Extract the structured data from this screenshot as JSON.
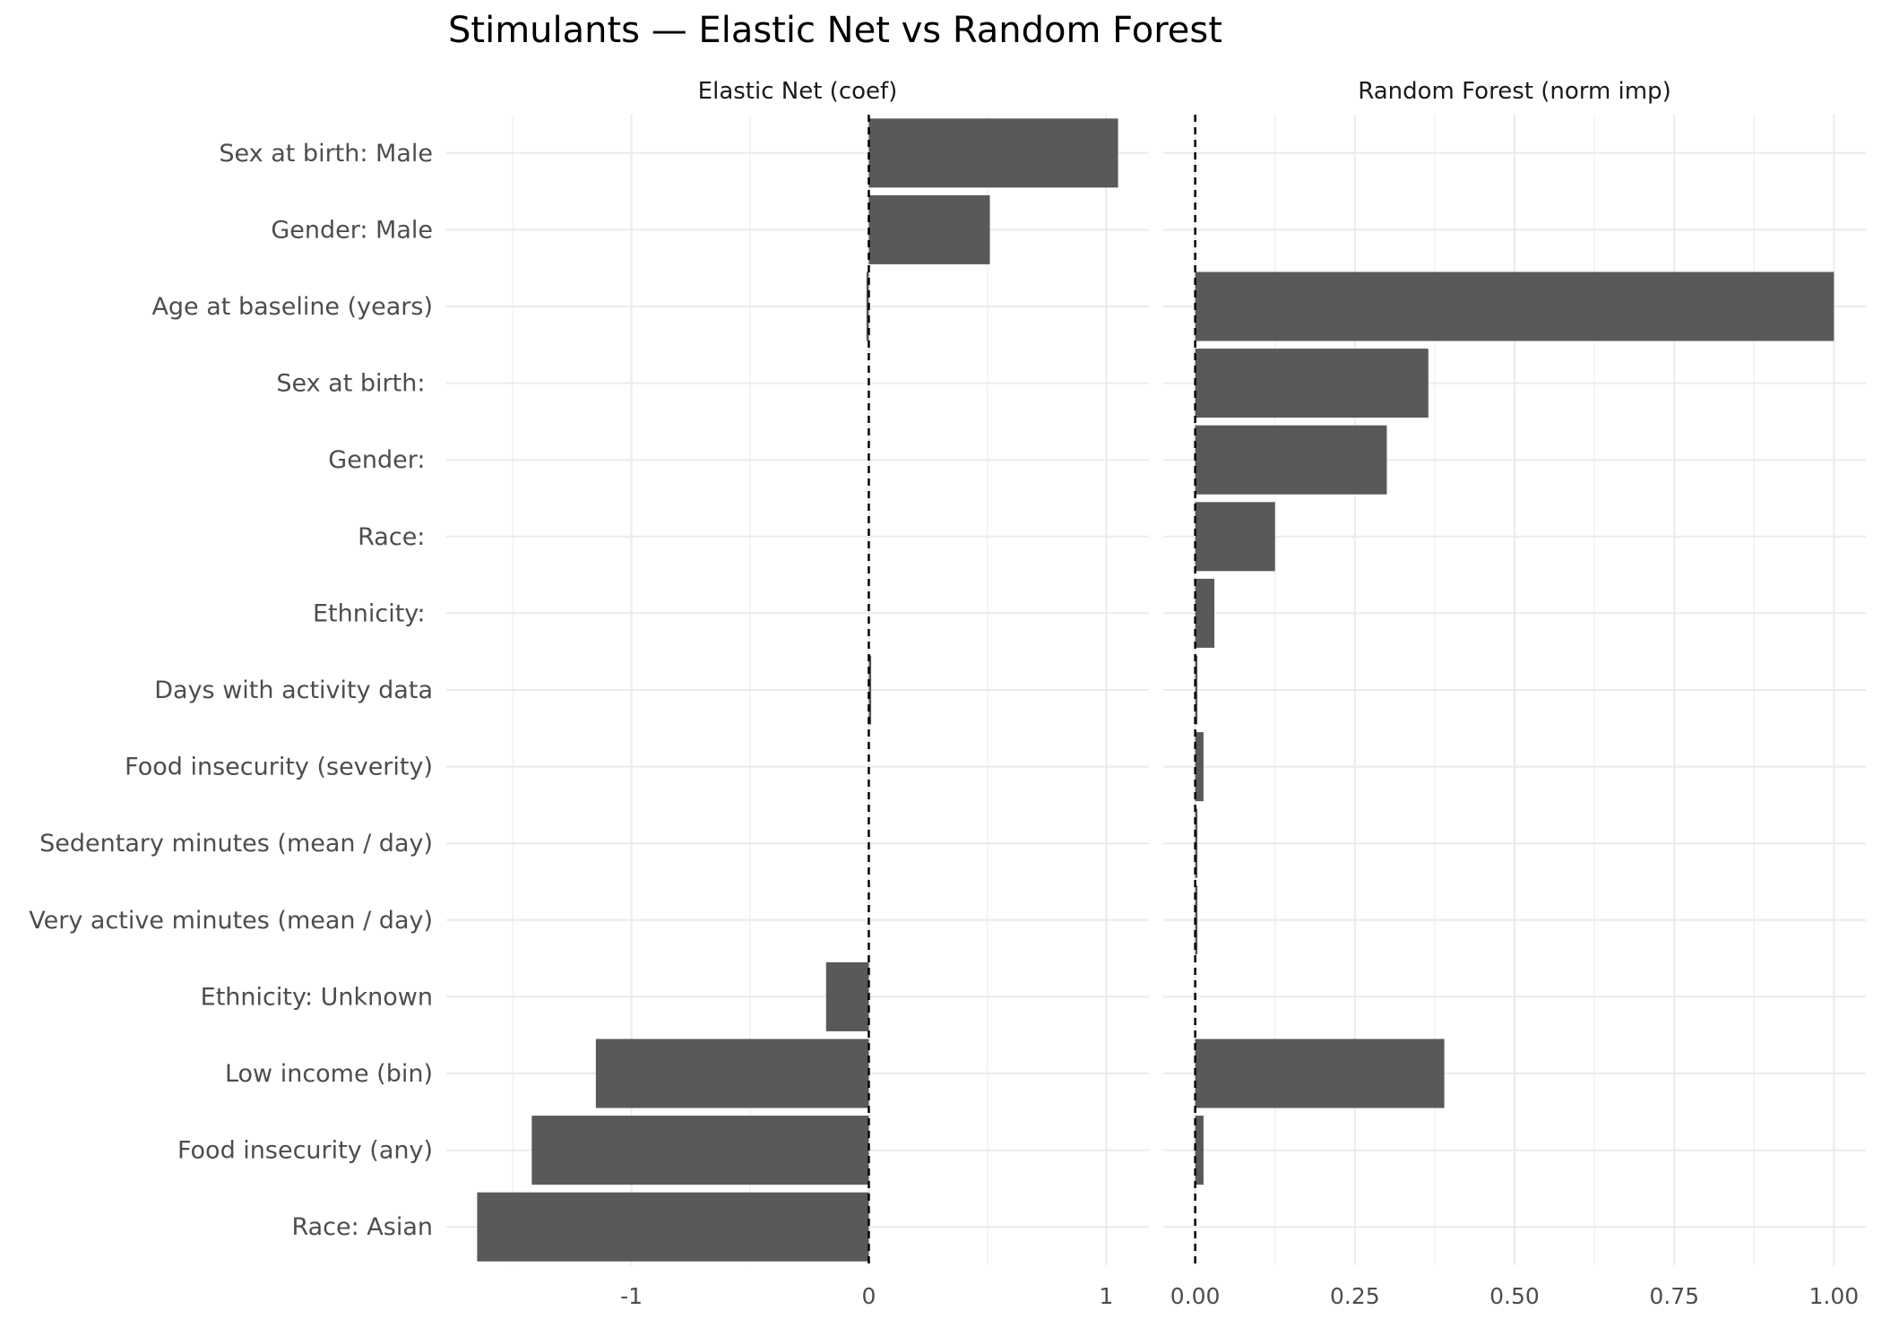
{
  "chart_data": {
    "type": "bar",
    "orientation": "horizontal",
    "title": "Stimulants — Elastic Net vs Random Forest",
    "categories": [
      "Sex at birth: Male",
      "Gender: Male",
      "Age at baseline (years)",
      "Sex at birth: ",
      "Gender: ",
      "Race: ",
      "Ethnicity: ",
      "Days with activity data",
      "Food insecurity (severity)",
      "Sedentary minutes (mean / day)",
      "Very active minutes (mean / day)",
      "Ethnicity: Unknown",
      "Low income (bin)",
      "Food insecurity (any)",
      "Race: Asian"
    ],
    "panels": [
      {
        "label": "Elastic Net (coef)",
        "xlim": [
          -1.78,
          1.18
        ],
        "xticks": [
          -1,
          0,
          1
        ],
        "xtick_labels": [
          "-1",
          "0",
          "1"
        ],
        "reference_line": 0,
        "values": [
          1.05,
          0.51,
          -0.01,
          0,
          0,
          0,
          0,
          0.01,
          0,
          0,
          0,
          -0.18,
          -1.15,
          -1.42,
          -1.65
        ]
      },
      {
        "label": "Random Forest (norm imp)",
        "xlim": [
          -0.05,
          1.05
        ],
        "xticks": [
          0,
          0.25,
          0.5,
          0.75,
          1.0
        ],
        "xtick_labels": [
          "0.00",
          "0.25",
          "0.50",
          "0.75",
          "1.00"
        ],
        "reference_line": 0,
        "values": [
          0,
          0,
          1.0,
          0.365,
          0.3,
          0.125,
          0.03,
          0.003,
          0.013,
          0.003,
          0.003,
          0,
          0.39,
          0.013,
          0
        ]
      }
    ],
    "bar_color": "#595959",
    "grid": true
  }
}
